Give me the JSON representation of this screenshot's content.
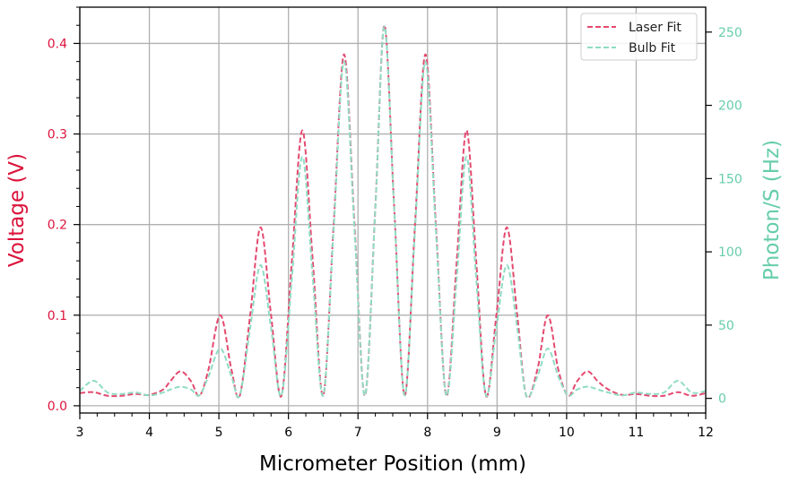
{
  "chart_data": {
    "type": "line",
    "xlabel": "Micrometer Position (mm)",
    "ylabel_left": "Voltage (V)",
    "ylabel_right": "Photon/S (Hz)",
    "xlim": [
      3,
      12
    ],
    "ylim_left": [
      -0.008,
      0.44
    ],
    "ylim_right": [
      -10,
      267
    ],
    "x_ticks": [
      3,
      4,
      5,
      6,
      7,
      8,
      9,
      10,
      11,
      12
    ],
    "y_left_ticks": [
      0.0,
      0.1,
      0.2,
      0.3,
      0.4
    ],
    "y_left_tick_labels": [
      "0.0",
      "0.1",
      "0.2",
      "0.3",
      "0.4"
    ],
    "y_right_ticks": [
      0,
      50,
      100,
      150,
      200,
      250
    ],
    "grid": true,
    "legend_position": "top-right",
    "colors": {
      "left_axis": "#dc143c",
      "right_axis": "#66cdaa",
      "laser": "#e34a6f",
      "bulb": "#8fdcc4"
    },
    "series": [
      {
        "name": "Laser Fit",
        "axis": "left",
        "style": "dashed",
        "x": [
          3.0,
          3.2,
          3.4,
          3.6,
          3.8,
          4.0,
          4.2,
          4.3,
          4.45,
          4.6,
          4.72,
          4.85,
          5.02,
          5.18,
          5.3,
          5.45,
          5.6,
          5.75,
          5.9,
          6.05,
          6.2,
          6.35,
          6.5,
          6.65,
          6.8,
          6.95,
          7.1,
          7.25,
          7.38,
          7.52,
          7.67,
          7.82,
          7.97,
          8.12,
          8.27,
          8.42,
          8.56,
          8.7,
          8.84,
          8.99,
          9.14,
          9.29,
          9.42,
          9.58,
          9.73,
          9.88,
          10.02,
          10.15,
          10.3,
          10.45,
          10.6,
          10.8,
          11.0,
          11.2,
          11.4,
          11.6,
          11.8,
          12.0
        ],
        "y": [
          0.014,
          0.015,
          0.011,
          0.011,
          0.013,
          0.012,
          0.018,
          0.027,
          0.038,
          0.027,
          0.011,
          0.04,
          0.1,
          0.04,
          0.011,
          0.1,
          0.197,
          0.1,
          0.011,
          0.16,
          0.304,
          0.16,
          0.011,
          0.2,
          0.388,
          0.2,
          0.011,
          0.22,
          0.42,
          0.22,
          0.011,
          0.2,
          0.388,
          0.2,
          0.011,
          0.16,
          0.304,
          0.16,
          0.011,
          0.1,
          0.197,
          0.1,
          0.011,
          0.04,
          0.1,
          0.04,
          0.011,
          0.027,
          0.038,
          0.027,
          0.018,
          0.012,
          0.013,
          0.011,
          0.011,
          0.015,
          0.011,
          0.014
        ]
      },
      {
        "name": "Bulb Fit",
        "axis": "right",
        "style": "dashed",
        "x": [
          3.0,
          3.2,
          3.4,
          3.6,
          3.8,
          4.0,
          4.2,
          4.3,
          4.45,
          4.6,
          4.72,
          4.85,
          5.02,
          5.18,
          5.3,
          5.45,
          5.6,
          5.75,
          5.9,
          6.05,
          6.2,
          6.35,
          6.5,
          6.65,
          6.8,
          6.95,
          7.1,
          7.25,
          7.38,
          7.52,
          7.67,
          7.82,
          7.97,
          8.12,
          8.27,
          8.42,
          8.56,
          8.7,
          8.84,
          8.99,
          9.14,
          9.29,
          9.42,
          9.58,
          9.73,
          9.88,
          10.02,
          10.15,
          10.3,
          10.45,
          10.6,
          10.8,
          11.0,
          11.2,
          11.4,
          11.6,
          11.8,
          12.0
        ],
        "y": [
          5,
          12,
          4,
          3,
          4,
          2,
          4,
          6,
          8,
          6,
          2,
          15,
          34,
          15,
          2,
          48,
          91,
          48,
          2,
          82,
          165,
          82,
          2,
          115,
          230,
          115,
          2,
          130,
          254,
          130,
          2,
          115,
          230,
          115,
          2,
          82,
          165,
          82,
          2,
          48,
          91,
          48,
          2,
          15,
          34,
          15,
          2,
          6,
          8,
          6,
          4,
          2,
          4,
          3,
          4,
          12,
          4,
          5
        ]
      }
    ]
  }
}
